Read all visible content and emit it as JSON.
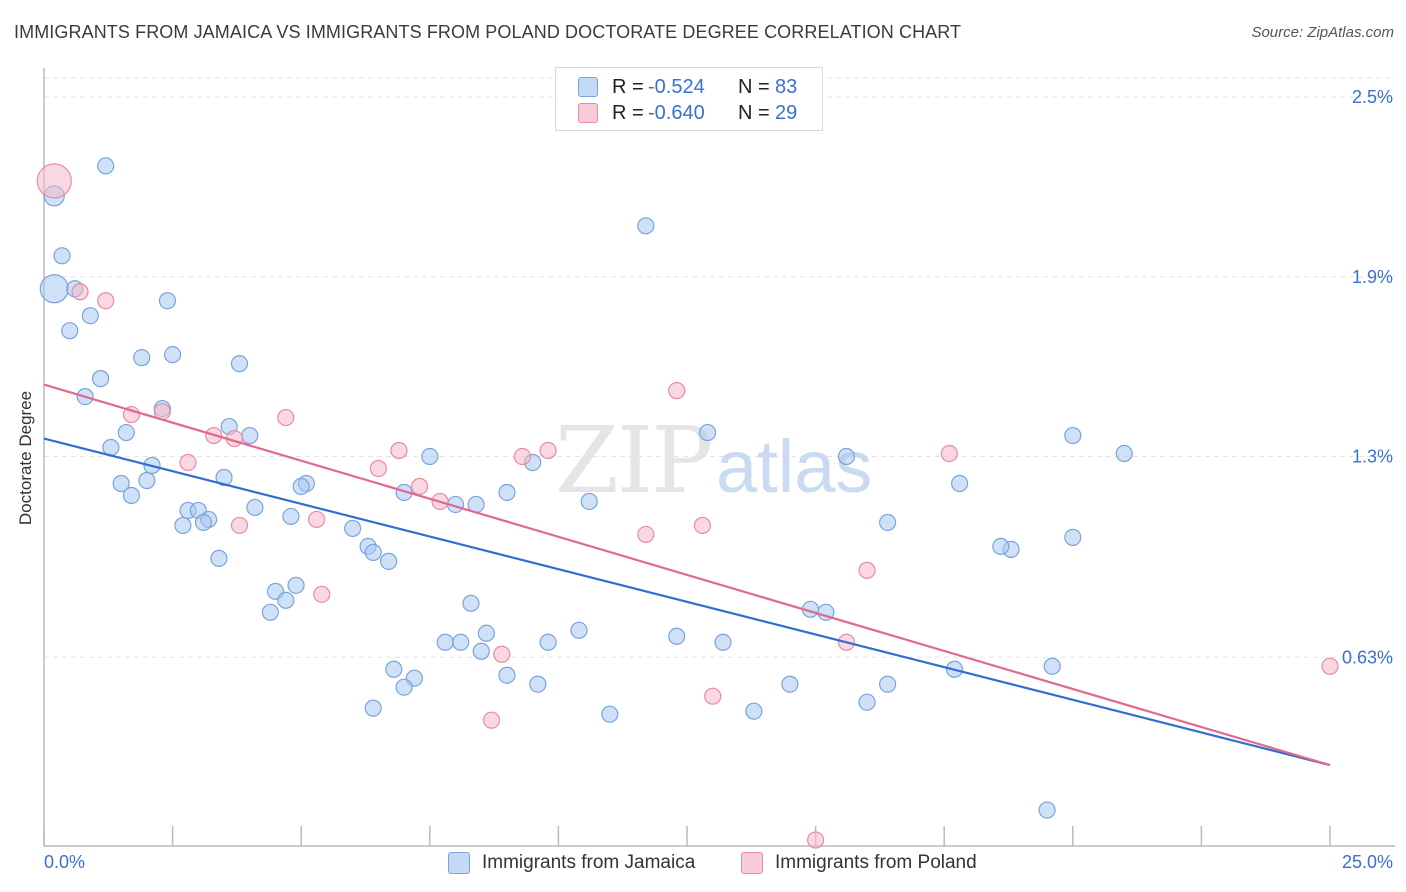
{
  "chart_data": {
    "type": "scatter",
    "title": "IMMIGRANTS FROM JAMAICA VS IMMIGRANTS FROM POLAND DOCTORATE DEGREE CORRELATION CHART",
    "source": "Source: ZipAtlas.com",
    "xlabel": "",
    "ylabel": "Doctorate Degree",
    "xlim": [
      0,
      25
    ],
    "ylim": [
      0,
      2.6
    ],
    "x_tick_labels": [
      {
        "value": 0,
        "label": "0.0%"
      },
      {
        "value": 25,
        "label": "25.0%"
      }
    ],
    "y_tick_labels": [
      {
        "value": 0.63,
        "label": "0.63%"
      },
      {
        "value": 1.3,
        "label": "1.3%"
      },
      {
        "value": 1.9,
        "label": "1.9%"
      },
      {
        "value": 2.5,
        "label": "2.5%"
      }
    ],
    "watermark": {
      "part1": "ZIP",
      "part2": "atlas"
    },
    "legend": [
      {
        "r_label": "R =",
        "r_value": "-0.524",
        "n_label": "N =",
        "n_value": "83"
      },
      {
        "r_label": "R =",
        "r_value": "-0.640",
        "n_label": "N =",
        "n_value": "29"
      }
    ],
    "series": [
      {
        "name": "Immigrants from Jamaica",
        "color": "#a8c8f0",
        "edge": "#7aa3db",
        "line_color": "#2e6fd0",
        "trend": {
          "x0": 0,
          "y0": 1.36,
          "x1": 25,
          "y1": 0.27
        },
        "points": [
          [
            0.2,
            1.86,
            14
          ],
          [
            0.2,
            2.17,
            10
          ],
          [
            0.35,
            1.97,
            8
          ],
          [
            0.6,
            1.86,
            8
          ],
          [
            1.2,
            2.27,
            8
          ],
          [
            0.9,
            1.77,
            8
          ],
          [
            0.5,
            1.72,
            8
          ],
          [
            2.4,
            1.82,
            8
          ],
          [
            1.9,
            1.63,
            8
          ],
          [
            2.5,
            1.64,
            8
          ],
          [
            1.1,
            1.56,
            8
          ],
          [
            0.8,
            1.5,
            8
          ],
          [
            3.8,
            1.61,
            8
          ],
          [
            2.3,
            1.46,
            8
          ],
          [
            1.6,
            1.38,
            8
          ],
          [
            1.3,
            1.33,
            8
          ],
          [
            3.6,
            1.4,
            8
          ],
          [
            4.0,
            1.37,
            8
          ],
          [
            2.0,
            1.22,
            8
          ],
          [
            2.1,
            1.27,
            8
          ],
          [
            1.5,
            1.21,
            8
          ],
          [
            1.7,
            1.17,
            8
          ],
          [
            3.5,
            1.23,
            8
          ],
          [
            2.8,
            1.12,
            8
          ],
          [
            2.7,
            1.07,
            8
          ],
          [
            3.0,
            1.12,
            8
          ],
          [
            3.2,
            1.09,
            8
          ],
          [
            3.1,
            1.08,
            8
          ],
          [
            4.1,
            1.13,
            8
          ],
          [
            4.8,
            1.1,
            8
          ],
          [
            5.1,
            1.21,
            8
          ],
          [
            5.0,
            1.2,
            8
          ],
          [
            7.5,
            1.3,
            8
          ],
          [
            6.0,
            1.06,
            8
          ],
          [
            6.3,
            1.0,
            8
          ],
          [
            6.4,
            0.98,
            8
          ],
          [
            6.7,
            0.95,
            8
          ],
          [
            3.4,
            0.96,
            8
          ],
          [
            7.0,
            1.18,
            8
          ],
          [
            8.0,
            1.14,
            8
          ],
          [
            8.4,
            1.14,
            8
          ],
          [
            9.0,
            1.18,
            8
          ],
          [
            10.6,
            1.15,
            8
          ],
          [
            9.5,
            1.28,
            8
          ],
          [
            4.5,
            0.85,
            8
          ],
          [
            4.4,
            0.78,
            8
          ],
          [
            4.7,
            0.82,
            8
          ],
          [
            4.9,
            0.87,
            8
          ],
          [
            8.3,
            0.81,
            8
          ],
          [
            7.8,
            0.68,
            8
          ],
          [
            8.1,
            0.68,
            8
          ],
          [
            8.6,
            0.71,
            8
          ],
          [
            8.5,
            0.65,
            8
          ],
          [
            10.4,
            0.72,
            8
          ],
          [
            9.8,
            0.68,
            8
          ],
          [
            6.8,
            0.59,
            8
          ],
          [
            7.2,
            0.56,
            8
          ],
          [
            7.0,
            0.53,
            8
          ],
          [
            6.4,
            0.46,
            8
          ],
          [
            9.0,
            0.57,
            8
          ],
          [
            9.6,
            0.54,
            8
          ],
          [
            11.0,
            0.44,
            8
          ],
          [
            12.3,
            0.7,
            8
          ],
          [
            11.7,
            2.07,
            8
          ],
          [
            13.2,
            0.68,
            8
          ],
          [
            13.8,
            0.45,
            8
          ],
          [
            14.5,
            0.54,
            8
          ],
          [
            15.2,
            0.78,
            8
          ],
          [
            14.9,
            0.79,
            8
          ],
          [
            16.0,
            0.48,
            8
          ],
          [
            16.4,
            0.54,
            8
          ],
          [
            15.6,
            1.3,
            8
          ],
          [
            16.4,
            1.08,
            8
          ],
          [
            17.7,
            0.59,
            8
          ],
          [
            17.8,
            1.21,
            8
          ],
          [
            18.8,
            0.99,
            8
          ],
          [
            18.6,
            1.0,
            8
          ],
          [
            20.0,
            1.37,
            8
          ],
          [
            21.0,
            1.31,
            8
          ],
          [
            20.0,
            1.03,
            8
          ],
          [
            19.6,
            0.6,
            8
          ],
          [
            19.5,
            0.12,
            8
          ],
          [
            12.9,
            1.38,
            8
          ]
        ]
      },
      {
        "name": "Immigrants from Poland",
        "color": "#f6b8cb",
        "edge": "#e88aa8",
        "line_color": "#e0698f",
        "trend": {
          "x0": 0,
          "y0": 1.54,
          "x1": 25,
          "y1": 0.27
        },
        "points": [
          [
            0.2,
            2.22,
            17
          ],
          [
            0.7,
            1.85,
            8
          ],
          [
            1.2,
            1.82,
            8
          ],
          [
            1.7,
            1.44,
            8
          ],
          [
            2.3,
            1.45,
            8
          ],
          [
            2.8,
            1.28,
            8
          ],
          [
            3.3,
            1.37,
            8
          ],
          [
            3.7,
            1.36,
            8
          ],
          [
            4.7,
            1.43,
            8
          ],
          [
            3.8,
            1.07,
            8
          ],
          [
            5.3,
            1.09,
            8
          ],
          [
            5.4,
            0.84,
            8
          ],
          [
            6.5,
            1.26,
            8
          ],
          [
            6.9,
            1.32,
            8
          ],
          [
            7.3,
            1.2,
            8
          ],
          [
            7.7,
            1.15,
            8
          ],
          [
            9.3,
            1.3,
            8
          ],
          [
            9.8,
            1.32,
            8
          ],
          [
            11.7,
            1.04,
            8
          ],
          [
            12.3,
            1.52,
            8
          ],
          [
            12.8,
            1.07,
            8
          ],
          [
            8.7,
            0.42,
            8
          ],
          [
            8.9,
            0.64,
            8
          ],
          [
            13.0,
            0.5,
            8
          ],
          [
            15.0,
            0.02,
            8
          ],
          [
            15.6,
            0.68,
            8
          ],
          [
            16.0,
            0.92,
            8
          ],
          [
            17.6,
            1.31,
            8
          ],
          [
            25.0,
            0.6,
            8
          ]
        ]
      }
    ]
  },
  "colors": {
    "axis": "#bbbbbb",
    "grid": "#e3e3e3",
    "tick_text": "#3b6fd1",
    "watermark": "#e5e5e5",
    "watermark_blue": "#c9daf1"
  }
}
